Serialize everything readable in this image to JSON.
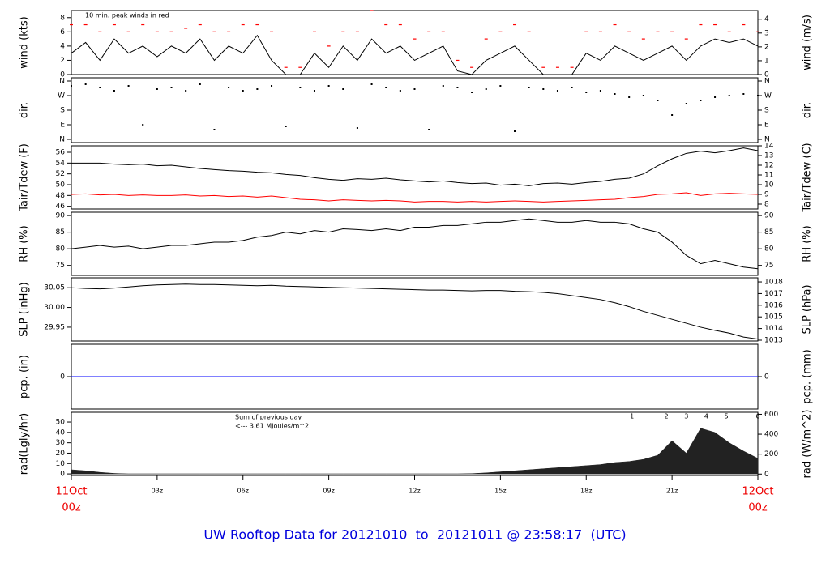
{
  "chart_data": [
    {
      "type": "line",
      "ylabel": "wind (kts)",
      "y2label": "wind (m/s)",
      "notes": [
        "10 min. peak winds in red"
      ],
      "note_color": "#ff0000",
      "ylim": [
        0,
        9
      ],
      "yticks": [
        0,
        2,
        4,
        6,
        8
      ],
      "y2lim": [
        0,
        4.63
      ],
      "y2ticks": [
        0,
        1,
        2,
        3,
        4
      ],
      "x": [
        0,
        0.5,
        1,
        1.5,
        2,
        2.5,
        3,
        3.5,
        4,
        4.5,
        5,
        5.5,
        6,
        6.5,
        7,
        7.5,
        8,
        8.5,
        9,
        9.5,
        10,
        10.5,
        11,
        11.5,
        12,
        12.5,
        13,
        13.5,
        14,
        14.5,
        15,
        15.5,
        16,
        16.5,
        17,
        17.5,
        18,
        18.5,
        19,
        19.5,
        20,
        20.5,
        21,
        21.5,
        22,
        22.5,
        23,
        23.5,
        24
      ],
      "series": [
        {
          "type": "line",
          "color": "#000000",
          "values": [
            3,
            4.5,
            2,
            5,
            3,
            4,
            2.5,
            4,
            3,
            5,
            2,
            4,
            3,
            5.5,
            2,
            0,
            0,
            3,
            1,
            4,
            2,
            5,
            3,
            4,
            2,
            3,
            4,
            0.5,
            0,
            2,
            3,
            4,
            2,
            0,
            0,
            0,
            3,
            2,
            4,
            3,
            2,
            3,
            4,
            2,
            4,
            5,
            4.5,
            5,
            4
          ]
        },
        {
          "type": "dash",
          "color": "#ff0000",
          "values": [
            7,
            7,
            6,
            7,
            6,
            7,
            6,
            6,
            6.5,
            7,
            6,
            6,
            7,
            7,
            6,
            1,
            1,
            6,
            4,
            6,
            6,
            9,
            7,
            7,
            5,
            6,
            6,
            2,
            1,
            5,
            6,
            7,
            6,
            1,
            1,
            1,
            6,
            6,
            7,
            6,
            5,
            6,
            6,
            5,
            7,
            7,
            6,
            7,
            6
          ]
        }
      ]
    },
    {
      "type": "scatter",
      "ylabel": "dir.",
      "y2label": "dir.",
      "ylim": [
        -20,
        380
      ],
      "yticks": [
        {
          "value": 360,
          "label": "N"
        },
        {
          "value": 270,
          "label": "W"
        },
        {
          "value": 180,
          "label": "S"
        },
        {
          "value": 90,
          "label": "E"
        },
        {
          "value": 0,
          "label": "N"
        }
      ],
      "y2lim": [
        -20,
        380
      ],
      "y2ticks": [
        {
          "value": 360,
          "label": "N"
        },
        {
          "value": 270,
          "label": "W"
        },
        {
          "value": 180,
          "label": "S"
        },
        {
          "value": 90,
          "label": "E"
        },
        {
          "value": 0,
          "label": "N"
        }
      ],
      "x": [
        0,
        0.5,
        1,
        1.5,
        2,
        2.5,
        3,
        3.5,
        4,
        4.5,
        5,
        5.5,
        6,
        6.5,
        7,
        7.5,
        8,
        8.5,
        9,
        9.5,
        10,
        10.5,
        11,
        11.5,
        12,
        12.5,
        13,
        13.5,
        14,
        14.5,
        15,
        15.5,
        16,
        16.5,
        17,
        17.5,
        18,
        18.5,
        19,
        19.5,
        20,
        20.5,
        21,
        21.5,
        22,
        22.5,
        23,
        23.5,
        24
      ],
      "series": [
        {
          "color": "#000000",
          "values": [
            330,
            340,
            320,
            300,
            330,
            90,
            310,
            320,
            300,
            340,
            60,
            320,
            300,
            310,
            330,
            80,
            320,
            300,
            330,
            310,
            70,
            340,
            320,
            300,
            310,
            60,
            330,
            320,
            290,
            310,
            330,
            50,
            320,
            310,
            300,
            320,
            290,
            300,
            280,
            260,
            270,
            240,
            150,
            220,
            240,
            260,
            270,
            280,
            270
          ]
        }
      ]
    },
    {
      "type": "line",
      "ylabel": "Tair/Tdew (F)",
      "y2label": "Tair/Tdew (C)",
      "ylim": [
        45.5,
        57.2
      ],
      "yticks": [
        46,
        48,
        50,
        52,
        54,
        56
      ],
      "y2lim": [
        7.5,
        14
      ],
      "y2ticks": [
        8,
        9,
        10,
        11,
        12,
        13,
        14
      ],
      "x": [
        0,
        0.5,
        1,
        1.5,
        2,
        2.5,
        3,
        3.5,
        4,
        4.5,
        5,
        5.5,
        6,
        6.5,
        7,
        7.5,
        8,
        8.5,
        9,
        9.5,
        10,
        10.5,
        11,
        11.5,
        12,
        12.5,
        13,
        13.5,
        14,
        14.5,
        15,
        15.5,
        16,
        16.5,
        17,
        17.5,
        18,
        18.5,
        19,
        19.5,
        20,
        20.5,
        21,
        21.5,
        22,
        22.5,
        23,
        23.5,
        24
      ],
      "series": [
        {
          "color": "#000000",
          "values": [
            54,
            54,
            54,
            53.8,
            53.7,
            53.8,
            53.5,
            53.6,
            53.3,
            53,
            52.8,
            52.6,
            52.5,
            52.3,
            52.2,
            51.9,
            51.7,
            51.3,
            51,
            50.8,
            51.1,
            51,
            51.2,
            50.9,
            50.7,
            50.5,
            50.7,
            50.4,
            50.2,
            50.3,
            49.9,
            50.1,
            49.8,
            50.2,
            50.3,
            50.1,
            50.4,
            50.6,
            51,
            51.2,
            52,
            53.5,
            54.8,
            55.8,
            56.2,
            55.9,
            56.3,
            56.8,
            56.3
          ]
        },
        {
          "color": "#ff0000",
          "values": [
            48.2,
            48.3,
            48.1,
            48.2,
            48.0,
            48.1,
            48.0,
            48.0,
            48.1,
            47.9,
            48.0,
            47.8,
            47.9,
            47.7,
            47.9,
            47.6,
            47.3,
            47.2,
            47.0,
            47.2,
            47.1,
            47.0,
            47.1,
            47.0,
            46.8,
            46.9,
            46.9,
            46.8,
            46.9,
            46.8,
            46.9,
            47.0,
            46.9,
            46.8,
            46.9,
            47.0,
            47.1,
            47.2,
            47.3,
            47.6,
            47.8,
            48.2,
            48.3,
            48.5,
            48.0,
            48.3,
            48.4,
            48.3,
            48.2
          ]
        }
      ]
    },
    {
      "type": "line",
      "ylabel": "RH (%)",
      "y2label": "RH (%)",
      "ylim": [
        72,
        91
      ],
      "yticks": [
        75,
        80,
        85,
        90
      ],
      "y2lim": [
        72,
        91
      ],
      "y2ticks": [
        75,
        80,
        85,
        90
      ],
      "x": [
        0,
        0.5,
        1,
        1.5,
        2,
        2.5,
        3,
        3.5,
        4,
        4.5,
        5,
        5.5,
        6,
        6.5,
        7,
        7.5,
        8,
        8.5,
        9,
        9.5,
        10,
        10.5,
        11,
        11.5,
        12,
        12.5,
        13,
        13.5,
        14,
        14.5,
        15,
        15.5,
        16,
        16.5,
        17,
        17.5,
        18,
        18.5,
        19,
        19.5,
        20,
        20.5,
        21,
        21.5,
        22,
        22.5,
        23,
        23.5,
        24
      ],
      "series": [
        {
          "color": "#000000",
          "values": [
            80,
            80.5,
            81,
            80.5,
            80.8,
            80,
            80.5,
            81,
            81,
            81.5,
            82,
            82,
            82.5,
            83.5,
            84,
            85,
            84.5,
            85.5,
            85,
            86,
            85.8,
            85.5,
            86,
            85.5,
            86.5,
            86.5,
            87,
            87,
            87.5,
            88,
            88,
            88.5,
            89,
            88.5,
            88,
            88,
            88.5,
            88,
            88,
            87.5,
            86,
            85,
            82,
            78,
            75.5,
            76.5,
            75.5,
            74.5,
            74
          ]
        }
      ]
    },
    {
      "type": "line",
      "ylabel": "SLP (inHg)",
      "y2label": "SLP (hPa)",
      "ylim": [
        29.915,
        30.075
      ],
      "yticks": [
        30.05,
        {
          "value": 30,
          "label": "30.00"
        },
        29.95
      ],
      "y2lim": [
        1012.93,
        1018.35
      ],
      "y2ticks": [
        1013,
        1014,
        1015,
        1016,
        1017,
        1018
      ],
      "x": [
        0,
        0.5,
        1,
        1.5,
        2,
        2.5,
        3,
        3.5,
        4,
        4.5,
        5,
        5.5,
        6,
        6.5,
        7,
        7.5,
        8,
        8.5,
        9,
        9.5,
        10,
        10.5,
        11,
        11.5,
        12,
        12.5,
        13,
        13.5,
        14,
        14.5,
        15,
        15.5,
        16,
        16.5,
        17,
        17.5,
        18,
        18.5,
        19,
        19.5,
        20,
        20.5,
        21,
        21.5,
        22,
        22.5,
        23,
        23.5,
        24
      ],
      "series": [
        {
          "color": "#000000",
          "values": [
            30.05,
            30.048,
            30.047,
            30.049,
            30.052,
            30.055,
            30.057,
            30.058,
            30.059,
            30.058,
            30.058,
            30.057,
            30.056,
            30.055,
            30.056,
            30.054,
            30.053,
            30.052,
            30.051,
            30.05,
            30.049,
            30.048,
            30.047,
            30.046,
            30.045,
            30.044,
            30.044,
            30.043,
            30.042,
            30.043,
            30.043,
            30.041,
            30.04,
            30.038,
            30.035,
            30.03,
            30.025,
            30.02,
            30.012,
            30.002,
            29.99,
            29.98,
            29.97,
            29.96,
            29.95,
            29.942,
            29.935,
            29.925,
            29.92
          ]
        }
      ]
    },
    {
      "type": "line",
      "ylabel": "pcp. (in)",
      "y2label": "pcp. (mm)",
      "ylim": [
        -1,
        1
      ],
      "yticks": [
        0
      ],
      "y2lim": [
        -25.4,
        25.4
      ],
      "y2ticks": [
        0
      ],
      "x": [
        0,
        0.5,
        1,
        1.5,
        2,
        2.5,
        3,
        3.5,
        4,
        4.5,
        5,
        5.5,
        6,
        6.5,
        7,
        7.5,
        8,
        8.5,
        9,
        9.5,
        10,
        10.5,
        11,
        11.5,
        12,
        12.5,
        13,
        13.5,
        14,
        14.5,
        15,
        15.5,
        16,
        16.5,
        17,
        17.5,
        18,
        18.5,
        19,
        19.5,
        20,
        20.5,
        21,
        21.5,
        22,
        22.5,
        23,
        23.5,
        24
      ],
      "series": [
        {
          "color": "#0000ff",
          "values": [
            0,
            0,
            0,
            0,
            0,
            0,
            0,
            0,
            0,
            0,
            0,
            0,
            0,
            0,
            0,
            0,
            0,
            0,
            0,
            0,
            0,
            0,
            0,
            0,
            0,
            0,
            0,
            0,
            0,
            0,
            0,
            0,
            0,
            0,
            0,
            0,
            0,
            0,
            0,
            0,
            0,
            0,
            0,
            0,
            0,
            0,
            0,
            0,
            0
          ]
        }
      ]
    },
    {
      "type": "area",
      "ylabel": "rad(Lgly/hr)",
      "y2label": "rad (W/m^2)",
      "notes": [
        "Sum of previous day",
        "<--- 3.61 MJoules/m^2"
      ],
      "note_color": "#9900cc",
      "markers": [
        {
          "x": 19.6,
          "label": "1"
        },
        {
          "x": 20.8,
          "label": "2"
        },
        {
          "x": 21.5,
          "label": "3"
        },
        {
          "x": 22.2,
          "label": "4"
        },
        {
          "x": 22.9,
          "label": "5"
        },
        {
          "x": 24,
          "label": "6"
        }
      ],
      "ylim": [
        -1.5,
        59.4
      ],
      "yticks": [
        0,
        10,
        20,
        30,
        40,
        50
      ],
      "y2lim": [
        -14,
        620
      ],
      "y2ticks": [
        0,
        200,
        400,
        600
      ],
      "x": [
        0,
        0.5,
        1,
        1.5,
        2,
        2.5,
        3,
        3.5,
        4,
        4.5,
        5,
        5.5,
        6,
        6.5,
        7,
        7.5,
        8,
        8.5,
        9,
        9.5,
        10,
        10.5,
        11,
        11.5,
        12,
        12.5,
        13,
        13.5,
        14,
        14.5,
        15,
        15.5,
        16,
        16.5,
        17,
        17.5,
        18,
        18.5,
        19,
        19.5,
        20,
        20.5,
        21,
        21.5,
        22,
        22.5,
        23,
        23.5,
        24
      ],
      "series": [
        {
          "color": "#222222",
          "values": [
            4,
            3,
            1.5,
            0.5,
            0,
            0,
            0,
            0,
            0,
            0,
            0,
            0,
            0,
            0,
            0,
            0,
            0,
            0,
            0,
            0,
            0,
            0,
            0,
            0,
            0,
            0,
            0,
            0,
            0.3,
            1,
            2,
            3,
            4,
            5,
            6,
            7,
            8,
            9,
            11,
            12,
            14,
            18,
            32,
            20,
            44,
            40,
            30,
            22,
            15
          ]
        }
      ]
    }
  ],
  "x_axis": {
    "xlim": [
      0,
      24
    ],
    "xticks": [
      {
        "value": 0,
        "label": "00z"
      },
      {
        "value": 3,
        "label": "03z"
      },
      {
        "value": 6,
        "label": "06z"
      },
      {
        "value": 9,
        "label": "09z"
      },
      {
        "value": 12,
        "label": "12z"
      },
      {
        "value": 15,
        "label": "15z"
      },
      {
        "value": 18,
        "label": "18z"
      },
      {
        "value": 21,
        "label": "21z"
      },
      {
        "value": 24,
        "label": "00z"
      }
    ],
    "date_labels": [
      {
        "value": 0,
        "label": "11Oct"
      },
      {
        "value": 24,
        "label": "12Oct"
      }
    ]
  },
  "title": "UW Rooftop Data for 20121010  to  20121011 @ 23:58:17  (UTC)"
}
